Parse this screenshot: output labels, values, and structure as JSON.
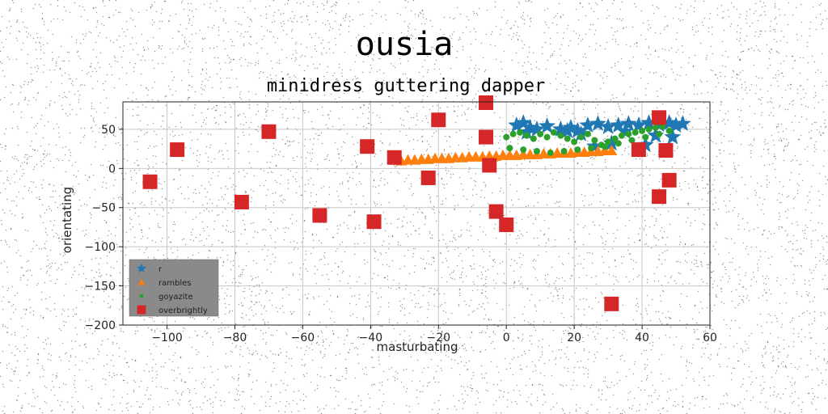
{
  "chart_data": {
    "type": "scatter",
    "title": "ousia",
    "subtitle": "minidress guttering dapper",
    "xlabel": "masturbating",
    "ylabel": "orientating",
    "xlim": [
      -113,
      60
    ],
    "ylim": [
      -200,
      85
    ],
    "xticks": [
      -100,
      -80,
      -60,
      -40,
      -20,
      0,
      20,
      40,
      60
    ],
    "yticks": [
      -200,
      -150,
      -100,
      -50,
      0,
      50
    ],
    "xtick_labels": [
      "−100",
      "−80",
      "−60",
      "−40",
      "−20",
      "0",
      "20",
      "40",
      "60"
    ],
    "ytick_labels": [
      "−200",
      "−150",
      "−100",
      "−50",
      "0",
      "50"
    ],
    "grid": true,
    "legend_position": "lower-left",
    "series": [
      {
        "name": "r",
        "marker": "star",
        "color": "#1f77b4",
        "x": [
          3,
          5,
          7,
          9,
          12,
          16,
          19,
          21,
          24,
          27,
          30,
          33,
          36,
          39,
          42,
          45,
          48,
          50,
          52,
          6,
          18,
          22,
          35,
          44,
          49,
          41,
          31,
          26
        ],
        "y": [
          55,
          58,
          52,
          50,
          54,
          50,
          52,
          48,
          55,
          57,
          53,
          55,
          57,
          55,
          58,
          56,
          58,
          55,
          57,
          46,
          48,
          44,
          47,
          42,
          40,
          30,
          32,
          28
        ]
      },
      {
        "name": "rambles",
        "marker": "triangle",
        "color": "#ff7f0e",
        "x": [
          -31,
          -29,
          -27,
          -25,
          -23,
          -21,
          -19,
          -17,
          -15,
          -13,
          -11,
          -9,
          -7,
          -5,
          -3,
          -1,
          1,
          3,
          5,
          7,
          9,
          11,
          13,
          15,
          17,
          19,
          21,
          23,
          25,
          27,
          29,
          31
        ],
        "y": [
          10,
          11,
          11,
          12,
          12,
          13,
          13,
          13,
          14,
          14,
          15,
          15,
          15,
          16,
          16,
          17,
          17,
          17,
          18,
          18,
          18,
          19,
          19,
          20,
          20,
          20,
          21,
          21,
          22,
          22,
          23,
          23
        ]
      },
      {
        "name": "goyazite",
        "marker": "circle",
        "color": "#2ca02c",
        "x": [
          0,
          2,
          4,
          6,
          8,
          10,
          12,
          14,
          16,
          18,
          20,
          22,
          24,
          26,
          28,
          30,
          32,
          34,
          36,
          38,
          40,
          42,
          44,
          46,
          48,
          1,
          5,
          9,
          13,
          17,
          21,
          25,
          29,
          33,
          37,
          41,
          45
        ],
        "y": [
          40,
          44,
          46,
          42,
          38,
          44,
          40,
          46,
          42,
          38,
          34,
          40,
          44,
          36,
          30,
          34,
          38,
          42,
          44,
          46,
          48,
          50,
          52,
          54,
          48,
          26,
          24,
          22,
          20,
          22,
          24,
          26,
          28,
          32,
          36,
          40,
          44
        ]
      },
      {
        "name": "overbrightly",
        "marker": "square",
        "color": "#d62728",
        "x": [
          -105,
          -97,
          -78,
          -70,
          -55,
          -41,
          -39,
          -33,
          -23,
          -20,
          -6,
          -6,
          -5,
          -3,
          0,
          31,
          39,
          45,
          45,
          47,
          48
        ],
        "y": [
          -17,
          24,
          -43,
          47,
          -60,
          28,
          -68,
          14,
          -12,
          62,
          84,
          40,
          4,
          -55,
          -72,
          -173,
          24,
          65,
          -36,
          23,
          -15
        ]
      }
    ]
  }
}
